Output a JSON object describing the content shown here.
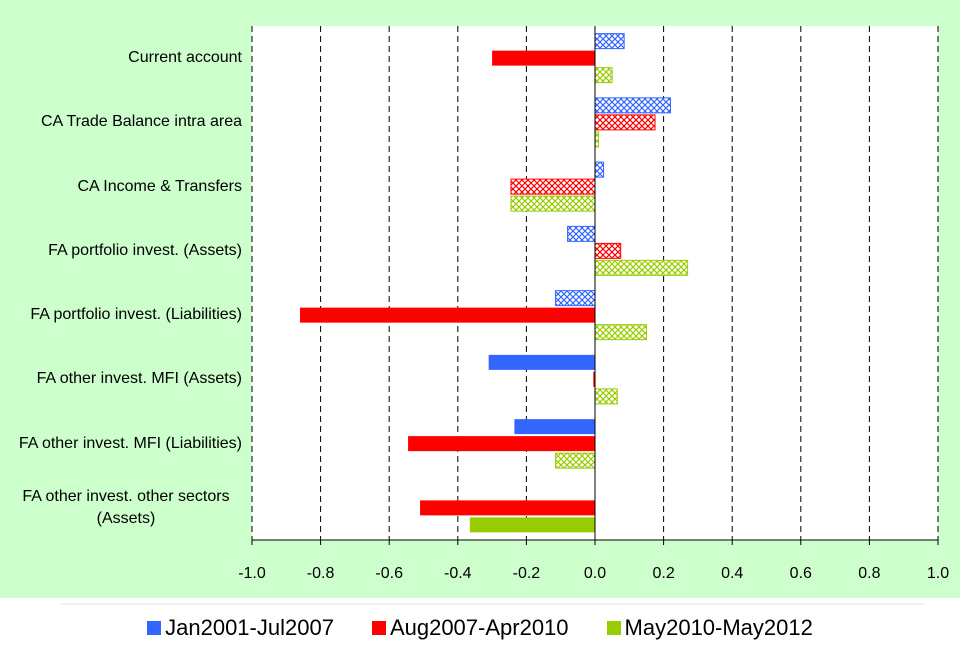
{
  "chart_data": {
    "type": "hbar",
    "categories": [
      "Current account",
      "CA Trade Balance intra area",
      "CA Income & Transfers",
      "FA portfolio invest. (Assets)",
      "FA portfolio invest. (Liabilities)",
      "FA other invest. MFI (Assets)",
      "FA other invest. MFI (Liabilities)",
      "FA other invest. other sectors (Assets)"
    ],
    "series": [
      {
        "name": "Jan2001-Jul2007",
        "color": "#3366ff",
        "values": [
          0.085,
          0.22,
          0.025,
          -0.08,
          -0.115,
          -0.31,
          -0.235,
          null
        ],
        "patterns": [
          "hatch",
          "hatch",
          "hatch",
          "hatch",
          "hatch",
          "solid",
          "solid",
          null
        ]
      },
      {
        "name": "Aug2007-Apr2010",
        "color": "#ff0000",
        "values": [
          -0.3,
          0.175,
          -0.245,
          0.075,
          -0.86,
          -0.005,
          -0.545,
          -0.51
        ],
        "patterns": [
          "solid",
          "hatch",
          "hatch",
          "hatch",
          "solid",
          "solid",
          "solid",
          "solid"
        ]
      },
      {
        "name": "May2010-May2012",
        "color": "#99cc00",
        "values": [
          0.05,
          0.01,
          -0.245,
          0.27,
          0.15,
          0.065,
          -0.115,
          -0.365
        ],
        "patterns": [
          "hatch",
          "hatch",
          "hatch",
          "hatch",
          "hatch",
          "hatch",
          "hatch",
          "solid"
        ]
      }
    ],
    "xlim": [
      -1,
      1
    ],
    "xticks": [
      {
        "value": -1,
        "label": "-1.0"
      },
      -0.8,
      -0.6,
      -0.4,
      -0.2,
      {
        "value": 0,
        "label": "0.0"
      },
      0.2,
      0.4,
      0.6,
      0.8,
      {
        "value": 1,
        "label": "1.0"
      }
    ],
    "grid": true,
    "legend": "bottom"
  }
}
